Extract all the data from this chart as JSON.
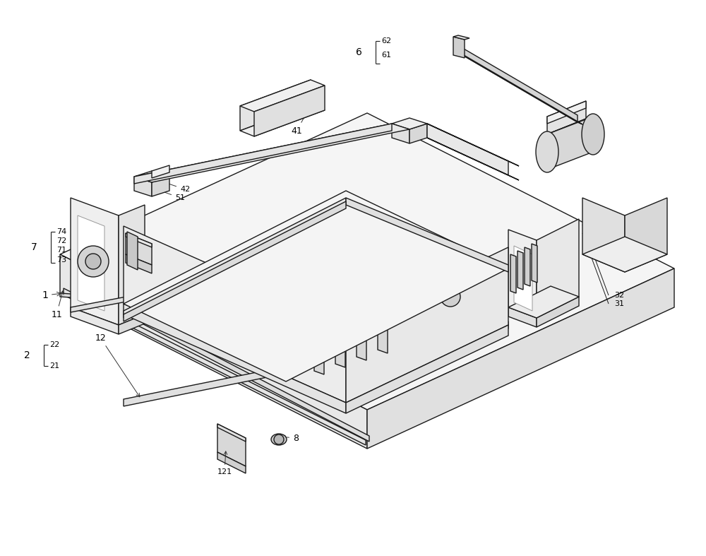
{
  "bg_color": "#ffffff",
  "line_color": "#1a1a1a",
  "line_width": 1.0,
  "figsize": [
    10.0,
    7.87
  ],
  "dpi": 100
}
